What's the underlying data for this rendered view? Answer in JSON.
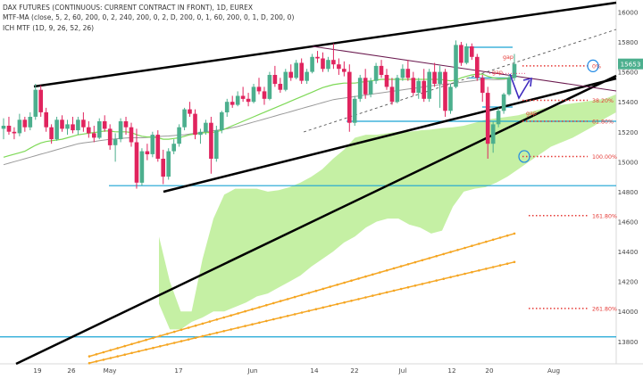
{
  "legend": {
    "line1": "DAX FUTURES (CONTINUOUS: CURRENT CONTRACT IN FRONT), 1D, EUREX",
    "line2": "MTF-MA (close, 5, 2, 60, 200, 0, 2, 240, 200, 0, 2, D, 200, 0, 1, 60, 200, 0, 1, D, 200, 0)",
    "line3": "ICH MTF (1D, 9, 26, 52, 26)"
  },
  "chart_data": {
    "type": "candlestick",
    "title": "DAX FUTURES (CONTINUOUS: CURRENT CONTRACT IN FRONT), 1D, EUREX",
    "y_axis": {
      "min": 13650,
      "max": 16080,
      "ticks": [
        13800,
        14000,
        14200,
        14400,
        14600,
        14800,
        15000,
        15200,
        15400,
        15600,
        15800,
        16000
      ],
      "position": "right"
    },
    "x_axis": {
      "ticks": [
        "19",
        "26",
        "May",
        "17",
        "Jun",
        "14",
        "22",
        "Jul",
        "12",
        "20",
        "Aug"
      ]
    },
    "last_price": "15653",
    "candles_ohlc": [
      [
        15220,
        15290,
        15150,
        15240
      ],
      [
        15240,
        15300,
        15180,
        15200
      ],
      [
        15200,
        15230,
        15150,
        15190
      ],
      [
        15190,
        15320,
        15170,
        15280
      ],
      [
        15280,
        15300,
        15200,
        15230
      ],
      [
        15230,
        15330,
        15210,
        15300
      ],
      [
        15300,
        15520,
        15280,
        15480
      ],
      [
        15480,
        15510,
        15300,
        15330
      ],
      [
        15330,
        15360,
        15200,
        15230
      ],
      [
        15230,
        15250,
        15120,
        15150
      ],
      [
        15150,
        15300,
        15140,
        15280
      ],
      [
        15280,
        15310,
        15200,
        15220
      ],
      [
        15220,
        15280,
        15180,
        15250
      ],
      [
        15250,
        15300,
        15190,
        15210
      ],
      [
        15210,
        15300,
        15180,
        15280
      ],
      [
        15280,
        15330,
        15200,
        15230
      ],
      [
        15230,
        15270,
        15160,
        15190
      ],
      [
        15190,
        15240,
        15130,
        15160
      ],
      [
        15160,
        15290,
        15150,
        15270
      ],
      [
        15270,
        15310,
        15200,
        15220
      ],
      [
        15220,
        15250,
        15080,
        15110
      ],
      [
        15110,
        15190,
        15000,
        15150
      ],
      [
        15150,
        15290,
        15130,
        15270
      ],
      [
        15270,
        15300,
        15180,
        15230
      ],
      [
        15230,
        15260,
        15100,
        15130
      ],
      [
        15130,
        15220,
        14820,
        14860
      ],
      [
        14860,
        15090,
        14840,
        15070
      ],
      [
        15070,
        15120,
        15010,
        15050
      ],
      [
        15050,
        15200,
        15030,
        15180
      ],
      [
        15180,
        15210,
        15000,
        15020
      ],
      [
        15020,
        15080,
        14850,
        14900
      ],
      [
        14900,
        15090,
        14880,
        15070
      ],
      [
        15070,
        15150,
        15050,
        15120
      ],
      [
        15120,
        15250,
        15100,
        15230
      ],
      [
        15230,
        15360,
        15210,
        15350
      ],
      [
        15350,
        15400,
        15300,
        15320
      ],
      [
        15320,
        15350,
        15150,
        15180
      ],
      [
        15180,
        15220,
        15120,
        15200
      ],
      [
        15200,
        15280,
        15180,
        15260
      ],
      [
        15260,
        15300,
        14920,
        15020
      ],
      [
        15020,
        15240,
        15000,
        15210
      ],
      [
        15210,
        15340,
        15190,
        15330
      ],
      [
        15330,
        15420,
        15300,
        15400
      ],
      [
        15400,
        15440,
        15360,
        15380
      ],
      [
        15380,
        15470,
        15370,
        15440
      ],
      [
        15440,
        15500,
        15400,
        15420
      ],
      [
        15420,
        15460,
        15370,
        15400
      ],
      [
        15400,
        15520,
        15390,
        15500
      ],
      [
        15500,
        15560,
        15450,
        15470
      ],
      [
        15470,
        15500,
        15380,
        15420
      ],
      [
        15420,
        15600,
        15410,
        15580
      ],
      [
        15580,
        15640,
        15500,
        15520
      ],
      [
        15520,
        15560,
        15460,
        15480
      ],
      [
        15480,
        15620,
        15470,
        15600
      ],
      [
        15600,
        15650,
        15540,
        15560
      ],
      [
        15560,
        15680,
        15550,
        15660
      ],
      [
        15660,
        15690,
        15520,
        15540
      ],
      [
        15540,
        15620,
        15520,
        15600
      ],
      [
        15600,
        15720,
        15590,
        15700
      ],
      [
        15700,
        15740,
        15660,
        15690
      ],
      [
        15690,
        15730,
        15600,
        15620
      ],
      [
        15620,
        15700,
        15600,
        15680
      ],
      [
        15680,
        15790,
        15620,
        15650
      ],
      [
        15650,
        15690,
        15580,
        15620
      ],
      [
        15620,
        15670,
        15570,
        15600
      ],
      [
        15600,
        15650,
        15200,
        15260
      ],
      [
        15260,
        15440,
        15240,
        15420
      ],
      [
        15420,
        15580,
        15400,
        15560
      ],
      [
        15560,
        15620,
        15420,
        15450
      ],
      [
        15450,
        15560,
        15430,
        15540
      ],
      [
        15540,
        15660,
        15520,
        15640
      ],
      [
        15640,
        15680,
        15560,
        15580
      ],
      [
        15580,
        15620,
        15480,
        15500
      ],
      [
        15500,
        15560,
        15380,
        15400
      ],
      [
        15400,
        15580,
        15390,
        15560
      ],
      [
        15560,
        15650,
        15540,
        15620
      ],
      [
        15620,
        15680,
        15540,
        15560
      ],
      [
        15560,
        15600,
        15440,
        15460
      ],
      [
        15460,
        15560,
        15420,
        15540
      ],
      [
        15540,
        15620,
        15400,
        15420
      ],
      [
        15420,
        15620,
        15400,
        15600
      ],
      [
        15600,
        15660,
        15500,
        15520
      ],
      [
        15520,
        15640,
        15360,
        15600
      ],
      [
        15600,
        15620,
        15300,
        15340
      ],
      [
        15340,
        15520,
        15320,
        15500
      ],
      [
        15500,
        15810,
        15490,
        15780
      ],
      [
        15780,
        15800,
        15640,
        15660
      ],
      [
        15660,
        15790,
        15650,
        15770
      ],
      [
        15770,
        15790,
        15680,
        15700
      ],
      [
        15700,
        15720,
        15540,
        15560
      ],
      [
        15560,
        15580,
        15400,
        15460
      ],
      [
        15460,
        15500,
        15020,
        15120
      ],
      [
        15120,
        15270,
        15060,
        15250
      ],
      [
        15250,
        15360,
        15230,
        15340
      ],
      [
        15340,
        15460,
        15320,
        15450
      ],
      [
        15450,
        15580,
        15440,
        15560
      ],
      [
        15560,
        15720,
        15540,
        15653
      ]
    ],
    "moving_averages": {
      "ma_green": [
        15030,
        15040,
        15050,
        15060,
        15070,
        15090,
        15110,
        15125,
        15135,
        15140,
        15145,
        15150,
        15160,
        15170,
        15180,
        15185,
        15190,
        15195,
        15200,
        15205,
        15205,
        15200,
        15200,
        15200,
        15195,
        15180,
        15170,
        15165,
        15165,
        15160,
        15150,
        15150,
        15155,
        15160,
        15170,
        15180,
        15185,
        15190,
        15195,
        15195,
        15200,
        15210,
        15225,
        15240,
        15255,
        15270,
        15285,
        15300,
        15315,
        15330,
        15345,
        15360,
        15375,
        15390,
        15405,
        15420,
        15435,
        15450,
        15465,
        15480,
        15495,
        15505,
        15515,
        15520,
        15525,
        15525,
        15525,
        15530,
        15535,
        15540,
        15545,
        15550,
        15550,
        15550,
        15550,
        15550,
        15550,
        15550,
        15550,
        15550,
        15550,
        15550,
        15550,
        15545,
        15540,
        15545,
        15560,
        15570,
        15580,
        15585,
        15585,
        15570,
        15560,
        15555,
        15555,
        15560,
        15570
      ],
      "ma_gray": [
        14980,
        14990,
        15000,
        15010,
        15020,
        15030,
        15040,
        15050,
        15060,
        15070,
        15080,
        15090,
        15100,
        15110,
        15120,
        15125,
        15130,
        15135,
        15140,
        15145,
        15150,
        15152,
        15155,
        15158,
        15160,
        15160,
        15160,
        15162,
        15165,
        15168,
        15170,
        15172,
        15175,
        15178,
        15180,
        15185,
        15190,
        15195,
        15200,
        15205,
        15210,
        15215,
        15220,
        15228,
        15235,
        15245,
        15255,
        15265,
        15275,
        15285,
        15295,
        15305,
        15315,
        15325,
        15335,
        15345,
        15355,
        15365,
        15375,
        15385,
        15395,
        15405,
        15415,
        15420,
        15425,
        15430,
        15435,
        15440,
        15445,
        15450,
        15455,
        15460,
        15465,
        15470,
        15475,
        15480,
        15485,
        15490,
        15495,
        15500,
        15505,
        15510,
        15515,
        15518,
        15520,
        15525,
        15530,
        15535,
        15540,
        15545,
        15550,
        15550,
        15548,
        15548,
        15550,
        15555,
        15560
      ]
    },
    "ichimoku_cloud": {
      "color": "#c5f0a4",
      "top": [
        14500,
        14200,
        14000,
        14000,
        14350,
        14620,
        14780,
        14820,
        14820,
        14820,
        14800,
        14810,
        14830,
        14860,
        14900,
        14950,
        15020,
        15080,
        15160,
        15180,
        15180,
        15190,
        15200,
        15200,
        15210,
        15215,
        15225,
        15230,
        15240,
        15260,
        15280,
        15290,
        15300,
        15310,
        15330,
        15350,
        15370,
        15380,
        15390,
        15400,
        15410,
        15420,
        15450
      ],
      "bottom": [
        14050,
        13880,
        13880,
        13930,
        13960,
        14000,
        14000,
        14030,
        14060,
        14100,
        14120,
        14160,
        14200,
        14240,
        14300,
        14350,
        14400,
        14460,
        14500,
        14560,
        14600,
        14620,
        14620,
        14580,
        14560,
        14520,
        14540,
        14700,
        14800,
        14820,
        14830,
        14860,
        14900,
        14950,
        15000,
        15050,
        15100,
        15130,
        15160,
        15200,
        15240,
        15290,
        15330
      ]
    },
    "orange_lines": {
      "color": "#f5a623",
      "upper": [
        [
          13700,
          13755
        ],
        [
          14370,
          14520
        ]
      ],
      "lower": [
        [
          13655,
          13700
        ],
        [
          14190,
          14330
        ]
      ]
    },
    "fib_levels": [
      {
        "label": "0%",
        "value": 15640
      },
      {
        "label": "38.20%",
        "value": 15410
      },
      {
        "label": "61.80%",
        "value": 15270
      },
      {
        "label": "100.00%",
        "value": 15035
      },
      {
        "label": "161.80%",
        "value": 14640
      },
      {
        "label": "261.80%",
        "value": 14020
      }
    ],
    "gap_labels": [
      "gap",
      "gap",
      "gap"
    ],
    "horizontal_levels": [
      15560,
      15270,
      14840,
      13830
    ],
    "trendlines": [
      {
        "kind": "upper_channel",
        "color": "black"
      },
      {
        "kind": "lower_channel",
        "color": "black"
      },
      {
        "kind": "inner_channel",
        "color": "black"
      },
      {
        "kind": "descending_thin",
        "color": "#6b1a4f"
      },
      {
        "kind": "dashed_parallel",
        "color": "#555"
      }
    ]
  }
}
